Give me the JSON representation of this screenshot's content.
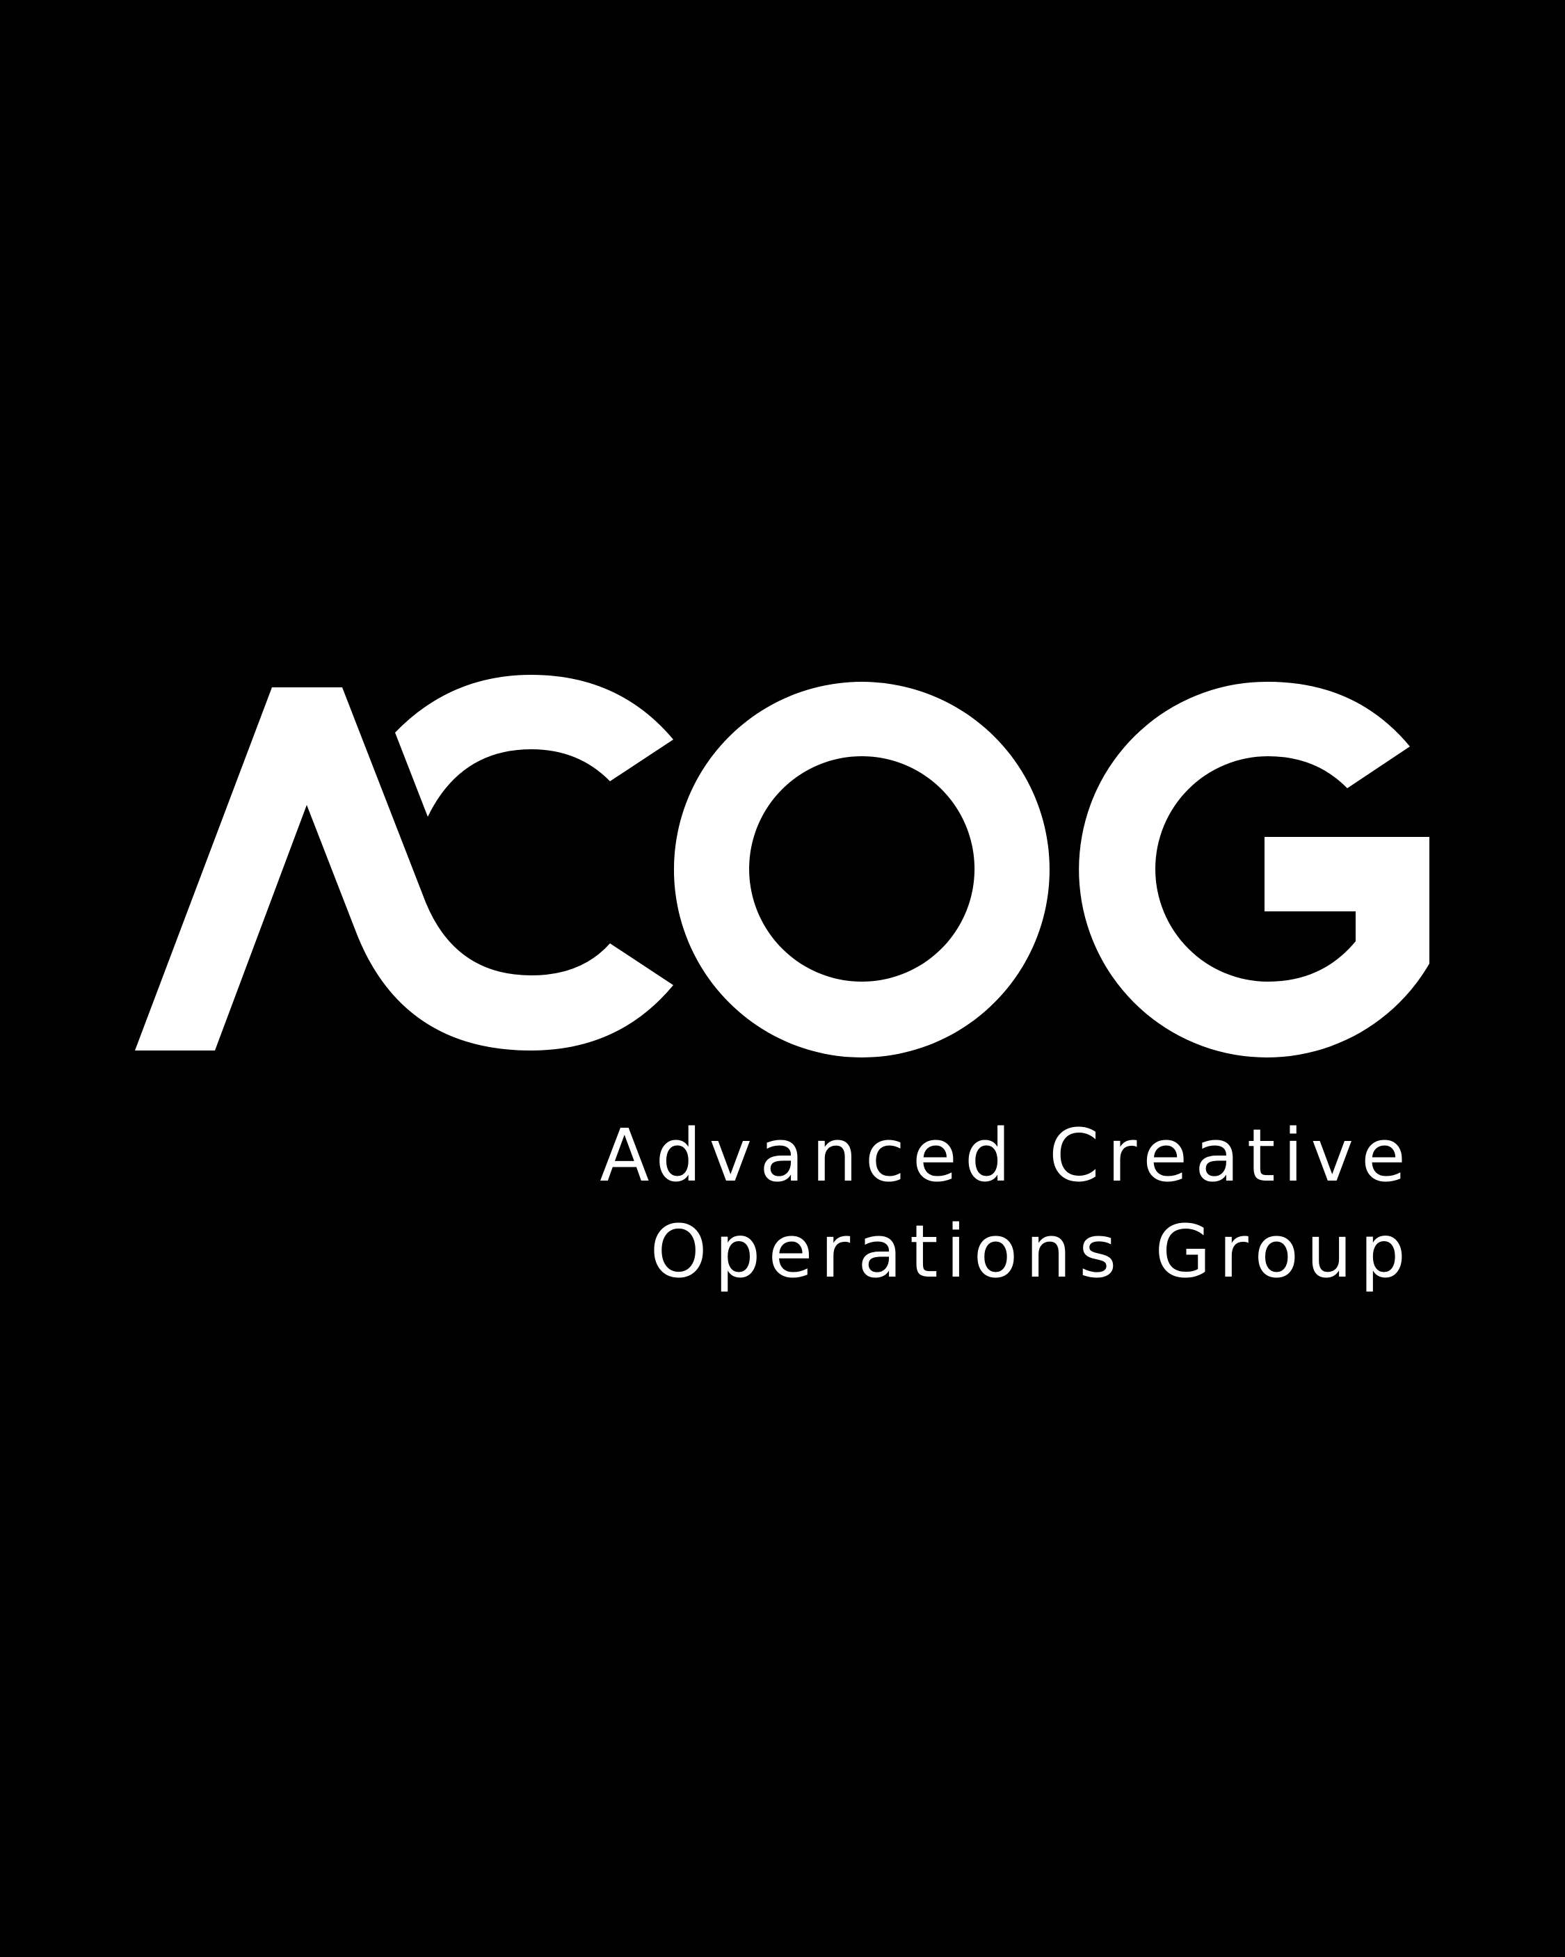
{
  "brand": {
    "wordmark": "ACOG",
    "tagline_line1": "Advanced Creative",
    "tagline_line2": "Operations Group"
  },
  "colors": {
    "background": "#000000",
    "foreground": "#ffffff"
  }
}
